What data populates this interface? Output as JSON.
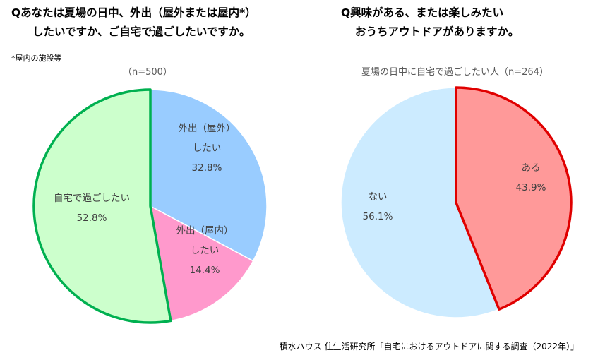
{
  "left_chart": {
    "title_line1": "Qあなたは夏場の日中、外出（屋外または屋内*）",
    "title_line2": "したいですか、ご自宅で過ごしたいですか。",
    "footnote": "*屋内の施設等",
    "subtitle": "（n=500）"
  },
  "right_chart": {
    "title_line1": "Q興味がある、または楽しみたい",
    "title_line2": "おうちアウトドアがありますか。",
    "subtitle": "夏場の日中に自宅で過ごしたい人（n=264）"
  },
  "source": "積水ハウス 住生活研究所「自宅におけるアウトドアに関する調査（2022年）」",
  "chart_data": [
    {
      "type": "pie",
      "title": "Qあなたは夏場の日中、外出（屋外または屋内*）したいですか、ご自宅で過ごしたいですか。",
      "subtitle": "（n=500）",
      "slices": [
        {
          "label_lines": [
            "外出（屋外）",
            "したい"
          ],
          "value": 32.8,
          "value_label": "32.8%",
          "color": "#99CCFF",
          "highlight": false
        },
        {
          "label_lines": [
            "外出（屋内）",
            "したい"
          ],
          "value": 14.4,
          "value_label": "14.4%",
          "color": "#FF99CC",
          "highlight": false
        },
        {
          "label_lines": [
            "自宅で過ごしたい"
          ],
          "value": 52.8,
          "value_label": "52.8%",
          "color": "#CCFFCC",
          "highlight": true,
          "highlight_color": "#00B050"
        }
      ]
    },
    {
      "type": "pie",
      "title": "Q興味がある、または楽しみたいおうちアウトドアがありますか。",
      "subtitle": "夏場の日中に自宅で過ごしたい人（n=264）",
      "slices": [
        {
          "label_lines": [
            "ある"
          ],
          "value": 43.9,
          "value_label": "43.9%",
          "color": "#FF9999",
          "highlight": true,
          "highlight_color": "#E00000"
        },
        {
          "label_lines": [
            "ない"
          ],
          "value": 56.1,
          "value_label": "56.1%",
          "color": "#CCEBFF",
          "highlight": false
        }
      ]
    }
  ]
}
